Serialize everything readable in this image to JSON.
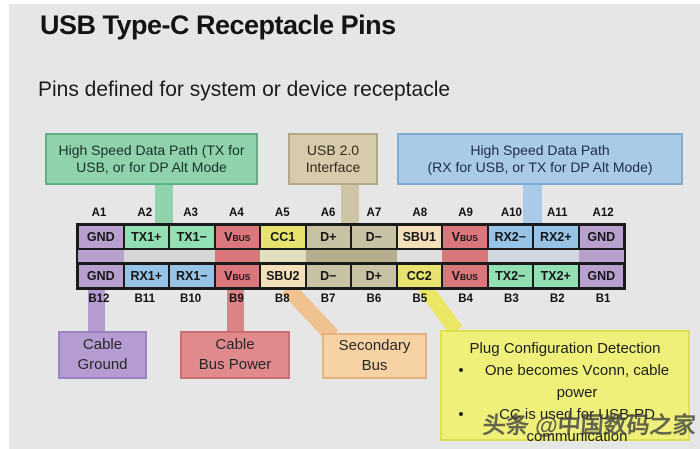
{
  "slide": {
    "title": "USB Type-C Receptacle Pins",
    "subtitle": "Pins defined for system or device receptacle"
  },
  "colors": {
    "gnd": "#b79fce",
    "tx": "#93dfb4",
    "rx": "#97c3e6",
    "vbus": "#d9777d",
    "cc": "#e7e26f",
    "d": "#c8c2a4",
    "sbu": "#f3dfba",
    "stem_green": "#8fd2ab",
    "stem_tan": "#cfc5a6",
    "stem_blue": "#aacbe8",
    "stem_purple": "#b49bd1",
    "stem_red": "#dd8287",
    "stem_orange": "#f0c28f",
    "stem_yellow": "#e9e763"
  },
  "callout_tx": {
    "line1": "High Speed Data Path (TX for",
    "line2": "USB, or for DP Alt Mode",
    "fill": "#8fd2ab",
    "border": "#5fae85"
  },
  "callout_usb2": {
    "line1": "USB 2.0",
    "line2": "Interface",
    "fill": "#d6cbac",
    "border": "#b3a888"
  },
  "callout_rx": {
    "line1": "High Speed Data Path",
    "line2": "(RX for USB, or TX for DP Alt Mode)",
    "fill": "#aacbe8",
    "border": "#82abd0"
  },
  "pin_table": {
    "top_labels": [
      "A1",
      "A2",
      "A3",
      "A4",
      "A5",
      "A6",
      "A7",
      "A8",
      "A9",
      "A10",
      "A11",
      "A12"
    ],
    "row_a": [
      {
        "name": "GND",
        "type": "gnd"
      },
      {
        "name": "TX1+",
        "type": "tx"
      },
      {
        "name": "TX1−",
        "type": "tx"
      },
      {
        "name": "VBUS",
        "main": "V",
        "sub": "BUS",
        "type": "vbus"
      },
      {
        "name": "CC1",
        "type": "cc"
      },
      {
        "name": "D+",
        "type": "d"
      },
      {
        "name": "D−",
        "type": "d"
      },
      {
        "name": "SBU1",
        "type": "sbu"
      },
      {
        "name": "VBUS",
        "main": "V",
        "sub": "BUS",
        "type": "vbus"
      },
      {
        "name": "RX2−",
        "type": "rx"
      },
      {
        "name": "RX2+",
        "type": "rx"
      },
      {
        "name": "GND",
        "type": "gnd"
      }
    ],
    "gap_colors": [
      "#b79fce",
      "#d7d7d7",
      "#d7d7d7",
      "#d9777d",
      "#e3e0bf",
      "#b6af8d",
      "#b6af8d",
      "#dedede",
      "#d9777d",
      "#d2d8df",
      "#d2d8df",
      "#b79fce"
    ],
    "row_b": [
      {
        "name": "GND",
        "type": "gnd"
      },
      {
        "name": "RX1+",
        "type": "rx"
      },
      {
        "name": "RX1−",
        "type": "rx"
      },
      {
        "name": "VBUS",
        "main": "V",
        "sub": "BUS",
        "type": "vbus"
      },
      {
        "name": "SBU2",
        "type": "sbu"
      },
      {
        "name": "D−",
        "type": "d"
      },
      {
        "name": "D+",
        "type": "d"
      },
      {
        "name": "CC2",
        "type": "cc"
      },
      {
        "name": "VBUS",
        "main": "V",
        "sub": "BUS",
        "type": "vbus"
      },
      {
        "name": "TX2−",
        "type": "tx"
      },
      {
        "name": "TX2+",
        "type": "tx"
      },
      {
        "name": "GND",
        "type": "gnd"
      }
    ],
    "bottom_labels": [
      "B12",
      "B11",
      "B10",
      "B9",
      "B8",
      "B7",
      "B6",
      "B5",
      "B4",
      "B3",
      "B2",
      "B1"
    ]
  },
  "callout_ground": {
    "line1": "Cable",
    "line2": "Ground",
    "fill": "#b49bd1",
    "border": "#9d82c2"
  },
  "callout_power": {
    "line1": "Cable",
    "line2": "Bus Power",
    "fill": "#e08a8d",
    "border": "#c76f73"
  },
  "callout_sbu": {
    "line1": "Secondary",
    "line2": "Bus",
    "fill": "#f6d2a4",
    "border": "#e5b47c"
  },
  "callout_cc": {
    "title": "Plug Configuration Detection",
    "bullets": [
      "One becomes Vconn, cable power",
      "CC is used for USB-PD communication"
    ],
    "bullet_char": "•",
    "fill": "#eef07a",
    "border": "#dde04e"
  },
  "watermark": "头条 @中国数码之家"
}
